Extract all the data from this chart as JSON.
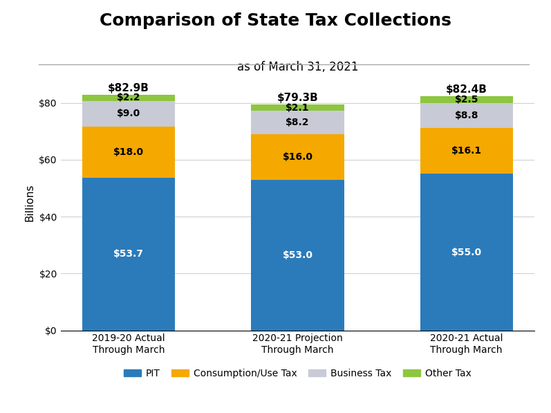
{
  "title": "Comparison of State Tax Collections",
  "subtitle": "as of March 31, 2021",
  "categories": [
    "2019-20 Actual\nThrough March",
    "2020-21 Projection\nThrough March",
    "2020-21 Actual\nThrough March"
  ],
  "pit": [
    53.7,
    53.0,
    55.0
  ],
  "consumption": [
    18.0,
    16.0,
    16.1
  ],
  "business": [
    9.0,
    8.2,
    8.8
  ],
  "other": [
    2.2,
    2.1,
    2.5
  ],
  "totals": [
    "$82.9B",
    "$79.3B",
    "$82.4B"
  ],
  "colors": {
    "pit": "#2b7bba",
    "consumption": "#f5a800",
    "business": "#c8cad6",
    "other": "#8dc63f"
  },
  "legend_labels": [
    "PIT",
    "Consumption/Use Tax",
    "Business Tax",
    "Other Tax"
  ],
  "ylabel": "Billions",
  "yticks": [
    0,
    20,
    40,
    60,
    80
  ],
  "ytick_labels": [
    "$0",
    "$20",
    "$40",
    "$60",
    "$80"
  ],
  "ylim": [
    0,
    90
  ],
  "bar_width": 0.55,
  "title_fontsize": 18,
  "subtitle_fontsize": 12,
  "label_fontsize": 10,
  "tick_fontsize": 10,
  "total_fontsize": 11,
  "legend_fontsize": 10,
  "ylabel_fontsize": 11,
  "background_color": "#ffffff",
  "plot_bg_color": "#ffffff"
}
